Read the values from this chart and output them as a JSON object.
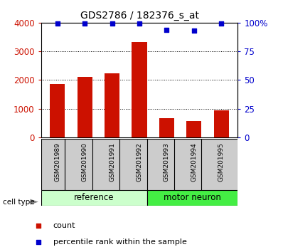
{
  "title": "GDS2786 / 182376_s_at",
  "samples": [
    "GSM201989",
    "GSM201990",
    "GSM201991",
    "GSM201992",
    "GSM201993",
    "GSM201994",
    "GSM201995"
  ],
  "counts": [
    1850,
    2100,
    2230,
    3320,
    660,
    560,
    940
  ],
  "percentiles": [
    99,
    99,
    99,
    99,
    94,
    93,
    99
  ],
  "group_labels": [
    "reference",
    "motor neuron"
  ],
  "ref_indices": [
    0,
    1,
    2,
    3
  ],
  "motor_indices": [
    4,
    5,
    6
  ],
  "bar_color": "#cc1100",
  "scatter_color": "#0000cc",
  "left_ylim": [
    0,
    4000
  ],
  "right_ylim": [
    0,
    100
  ],
  "left_yticks": [
    0,
    1000,
    2000,
    3000,
    4000
  ],
  "right_yticks": [
    0,
    25,
    50,
    75,
    100
  ],
  "left_ytick_labels": [
    "0",
    "1000",
    "2000",
    "3000",
    "4000"
  ],
  "right_ytick_labels": [
    "0",
    "25",
    "50",
    "75",
    "100%"
  ],
  "cell_type_label": "cell type",
  "legend_count_label": "count",
  "legend_percentile_label": "percentile rank within the sample",
  "ref_group_color": "#ccffcc",
  "motor_group_color": "#44ee44",
  "sample_bg_color": "#cccccc"
}
